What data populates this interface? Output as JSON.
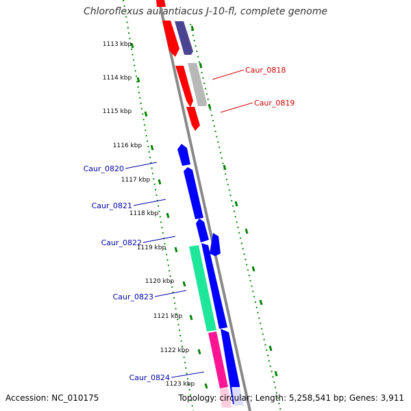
{
  "title": "Chloroflexus aurantiacus J-10-fl, complete genome",
  "accession": "Accession: NC_010175",
  "topology_info": "Topology: circular; Length: 5,258,541 bp; Genes: 3,911",
  "colors": {
    "red": "#ff0000",
    "purple": "#4b4491",
    "gray": "#b8b8b8",
    "blue": "#0000ff",
    "green": "#1ee69a",
    "pink": "#ff1493",
    "tick": "#008000",
    "backbone": "#808080"
  },
  "kbp_labels": [
    {
      "label": "1113 kbp",
      "kbp": 1113
    },
    {
      "label": "1114 kbp",
      "kbp": 1114
    },
    {
      "label": "1115 kbp",
      "kbp": 1115
    },
    {
      "label": "1116 kbp",
      "kbp": 1116
    },
    {
      "label": "1117 kbp",
      "kbp": 1117
    },
    {
      "label": "1118 kbp",
      "kbp": 1118
    },
    {
      "label": "1119 kbp",
      "kbp": 1119
    },
    {
      "label": "1120 kbp",
      "kbp": 1120
    },
    {
      "label": "1121 kbp",
      "kbp": 1121
    },
    {
      "label": "1122 kbp",
      "kbp": 1122
    },
    {
      "label": "1123 kbp",
      "kbp": 1123
    }
  ],
  "gene_labels": [
    {
      "label": "Caur_0818",
      "color": "#cc0000"
    },
    {
      "label": "Caur_0819",
      "color": "#cc0000"
    },
    {
      "label": "Caur_0820",
      "color": "#0000aa"
    },
    {
      "label": "Caur_0821",
      "color": "#0000aa"
    },
    {
      "label": "Caur_0822",
      "color": "#0000aa"
    },
    {
      "label": "Caur_0823",
      "color": "#0000aa"
    },
    {
      "label": "Caur_0824",
      "color": "#0000aa"
    }
  ]
}
